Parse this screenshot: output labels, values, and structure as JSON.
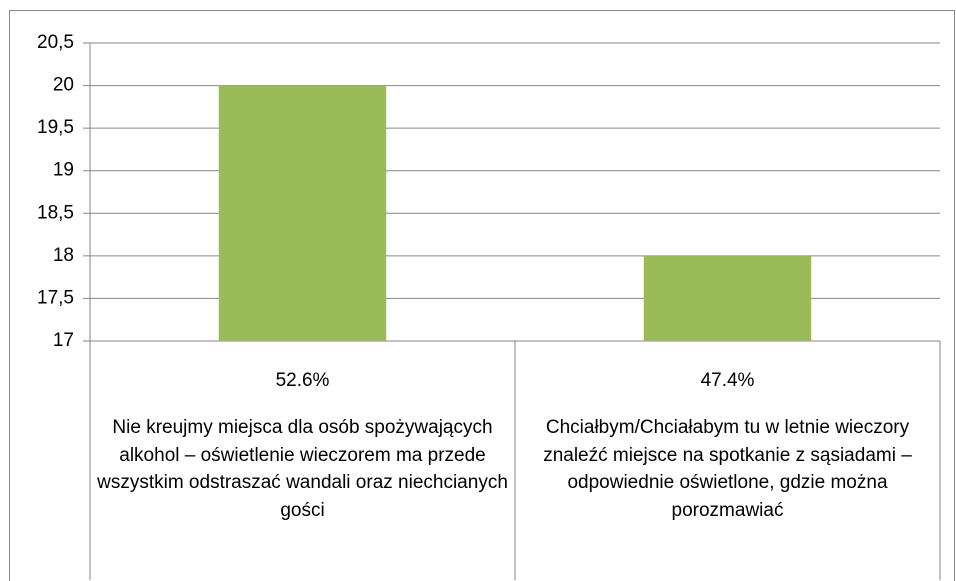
{
  "chart_data": {
    "type": "bar",
    "categories": [
      "Nie kreujmy miejsca dla osób spożywających alkohol – oświetlenie wieczorem ma przede wszystkim odstraszać wandali oraz niechcianych gości",
      "Chciałbym/Chciałabym tu w letnie wieczory znaleźć miejsce na spotkanie z sąsiadami – odpowiednie oświetlone, gdzie można porozmawiać"
    ],
    "subcategories": [
      "52.6%",
      "47.4%"
    ],
    "values": [
      20,
      18
    ],
    "color": "#9bbb59",
    "ylim": [
      17,
      20.5
    ],
    "yticks": [
      17,
      {
        "value": 17.5,
        "label": "17,5"
      },
      18,
      {
        "value": 18.5,
        "label": "18,5"
      },
      19,
      {
        "value": 19.5,
        "label": "19,5"
      },
      20,
      {
        "value": 20.5,
        "label": "20,5"
      }
    ],
    "grid": true
  }
}
